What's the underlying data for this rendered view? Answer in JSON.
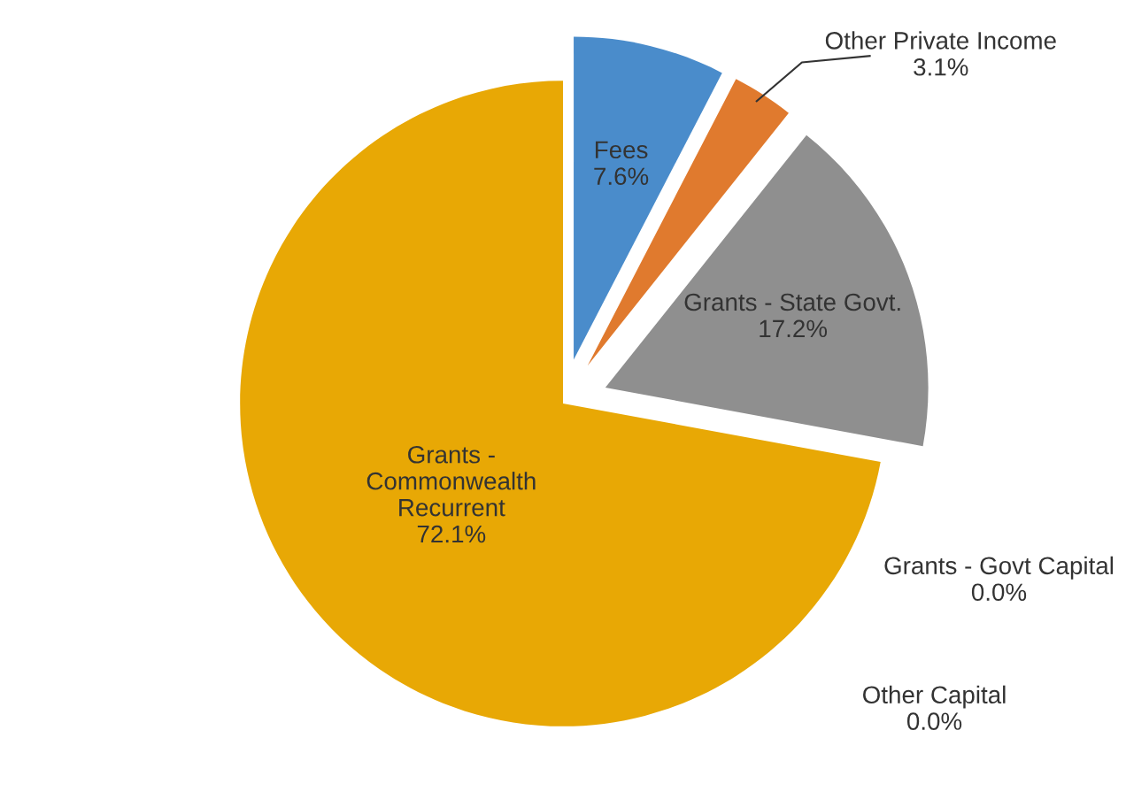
{
  "chart_data": {
    "type": "pie",
    "categories": [
      "Fees",
      "Other Private Income",
      "Grants - State Govt.",
      "Grants - Govt Capital",
      "Other Capital",
      "Grants -\nCommonwealth\nRecurrent"
    ],
    "values": [
      7.6,
      3.1,
      17.2,
      0.0,
      0.0,
      72.1
    ],
    "value_labels": [
      "7.6%",
      "3.1%",
      "17.2%",
      "0.0%",
      "0.0%",
      "72.1%"
    ],
    "colors": [
      "#4a8ccb",
      "#e07a2e",
      "#8f8f8f",
      "#5bb0dc",
      "#6fa84a",
      "#e8a805"
    ]
  }
}
